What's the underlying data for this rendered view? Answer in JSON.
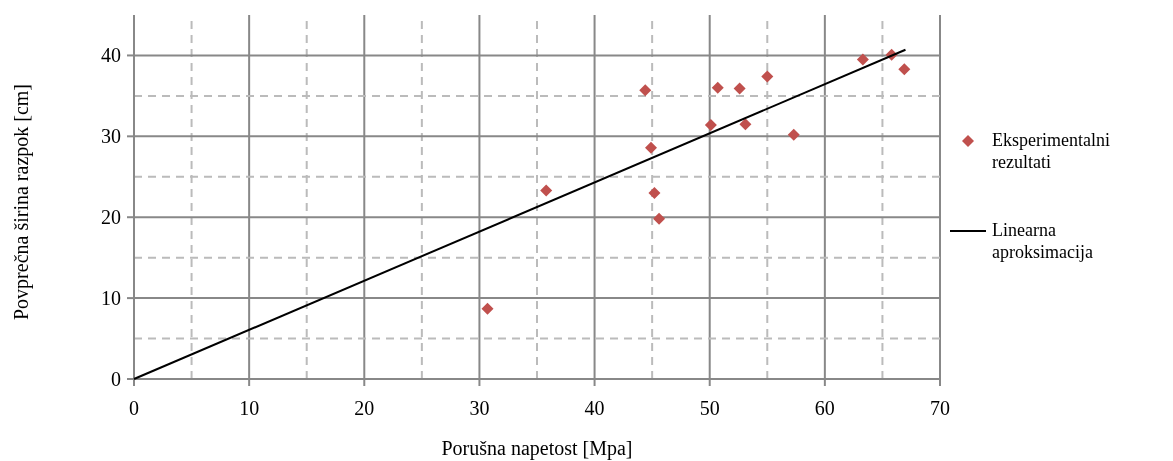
{
  "chart_data": {
    "type": "scatter",
    "xlabel": "Porušna napetost [Mpa]",
    "ylabel": "Povprečna širina razpok [cm]",
    "xlim": [
      0,
      70
    ],
    "ylim": [
      0,
      45
    ],
    "xticks": [
      0,
      {
        "value": 5,
        "label": null
      },
      10,
      {
        "value": 15,
        "label": null
      },
      20,
      {
        "value": 25,
        "label": null
      },
      30,
      {
        "value": 35,
        "label": null
      },
      40,
      {
        "value": 45,
        "label": null
      },
      50,
      {
        "value": 55,
        "label": null
      },
      60,
      {
        "value": 65,
        "label": null
      },
      70
    ],
    "yticks": [
      0,
      {
        "value": 5,
        "label": null
      },
      10,
      {
        "value": 15,
        "label": null
      },
      20,
      {
        "value": 25,
        "label": null
      },
      30,
      {
        "value": 35,
        "label": null
      },
      40
    ],
    "grid": true,
    "legend": "right",
    "series": [
      {
        "name": "Eksperimentalni rezultati",
        "marker": "diamond",
        "color": "#c0504d",
        "x": [
          30.7,
          35.8,
          44.4,
          44.9,
          45.2,
          45.6,
          50.1,
          50.7,
          52.6,
          53.1,
          55.0,
          57.3,
          63.3,
          65.8,
          66.9
        ],
        "values": [
          8.7,
          23.3,
          35.7,
          28.6,
          23.0,
          19.8,
          31.4,
          36.0,
          35.9,
          31.5,
          37.4,
          30.2,
          39.5,
          40.1,
          38.3
        ]
      },
      {
        "name": "Linearna aproksimacija",
        "type": "line",
        "marker": "none",
        "line_style": "solid",
        "color": "#000000",
        "x": [
          0,
          67.0
        ],
        "values": [
          0,
          40.7
        ]
      }
    ]
  }
}
